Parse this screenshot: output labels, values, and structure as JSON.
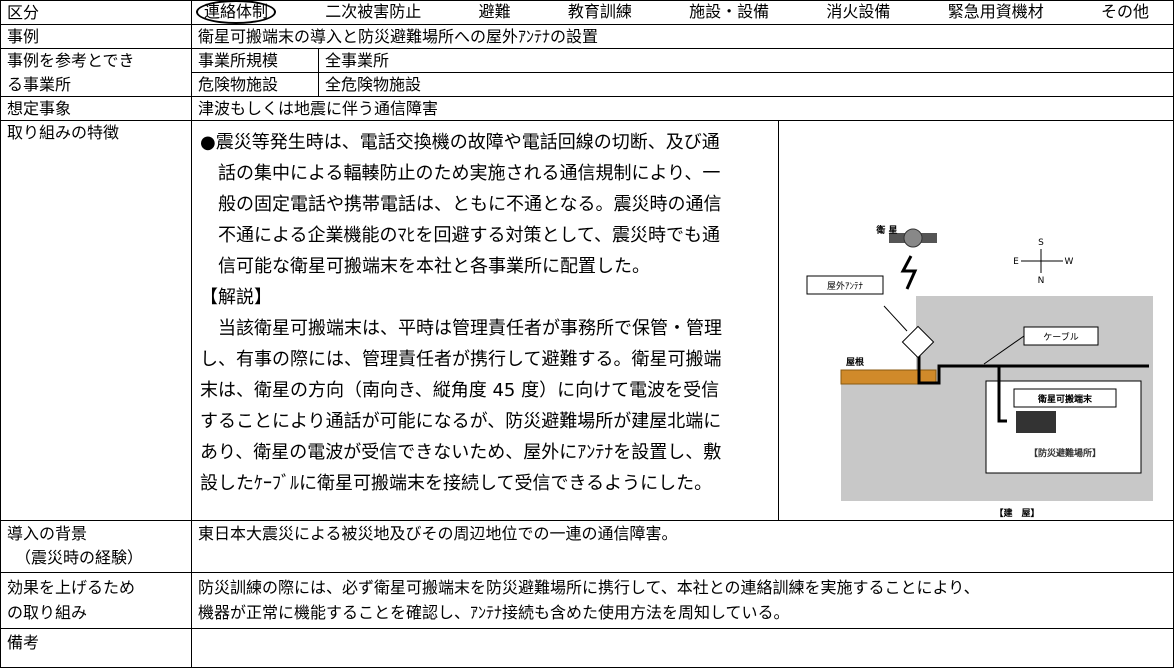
{
  "category": {
    "label": "区分",
    "options": [
      "連絡体制",
      "二次被害防止",
      "避難",
      "教育訓練",
      "施設・設備",
      "消火設備",
      "緊急用資機材",
      "その他"
    ],
    "selected": 0
  },
  "example": {
    "label": "事例",
    "text": "衛星可搬端末の導入と防災避難場所への屋外ｱﾝﾃﾅの設置"
  },
  "applicable": {
    "label_lines": [
      "事例を参考とでき",
      "る事業所"
    ],
    "items": [
      {
        "key": "事業所規模",
        "value": "全事業所"
      },
      {
        "key": "危険物施設",
        "value": "全危険物施設"
      }
    ]
  },
  "assumed": {
    "label": "想定事象",
    "text": "津波もしくは地震に伴う通信障害"
  },
  "features": {
    "label": "取り組みの特徴",
    "lines": [
      "●震災等発生時は、電話交換機の故障や電話回線の切断、及び通",
      "話の集中による輻輳防止のため実施される通信規制により、一",
      "般の固定電話や携帯電話は、ともに不通となる。震災時の通信",
      "不通による企業機能のﾏﾋを回避する対策として、震災時でも通",
      "信可能な衛星可搬端末を本社と各事業所に配置した。",
      "【解説】",
      "当該衛星可搬端末は、平時は管理責任者が事務所で保管・管理",
      "し、有事の際には、管理責任者が携行して避難する。衛星可搬端",
      "末は、衛星の方向（南向き、縦角度 45 度）に向けて電波を受信",
      "することにより通話が可能になるが、防災避難場所が建屋北端に",
      "あり、衛星の電波が受信できないため、屋外にｱﾝﾃﾅを設置し、敷",
      "設したｹｰﾌﾞﾙに衛星可搬端末を接続して受信できるようにした。"
    ],
    "diagram": {
      "satellite": "衛 星",
      "south": "S",
      "east": "E",
      "west": "W",
      "north": "N",
      "antenna": "屋外ｱﾝﾃﾅ",
      "cable": "ケーブル",
      "roof": "屋根",
      "terminal": "衛星可搬端末",
      "shelter": "【防災避難場所】",
      "building": "【建　屋】"
    }
  },
  "background": {
    "label_lines": [
      "導入の背景",
      "（震災時の経験）"
    ],
    "text": "東日本大震災による被災地及びその周辺地位での一連の通信障害。"
  },
  "effort": {
    "label_lines": [
      "効果を上げるため",
      "の取り組み"
    ],
    "lines": [
      "防災訓練の際には、必ず衛星可搬端末を防災避難場所に携行して、本社との連絡訓練を実施することにより、",
      "機器が正常に機能することを確認し、ｱﾝﾃﾅ接続も含めた使用方法を周知している。"
    ]
  },
  "remarks": {
    "label": "備考"
  }
}
